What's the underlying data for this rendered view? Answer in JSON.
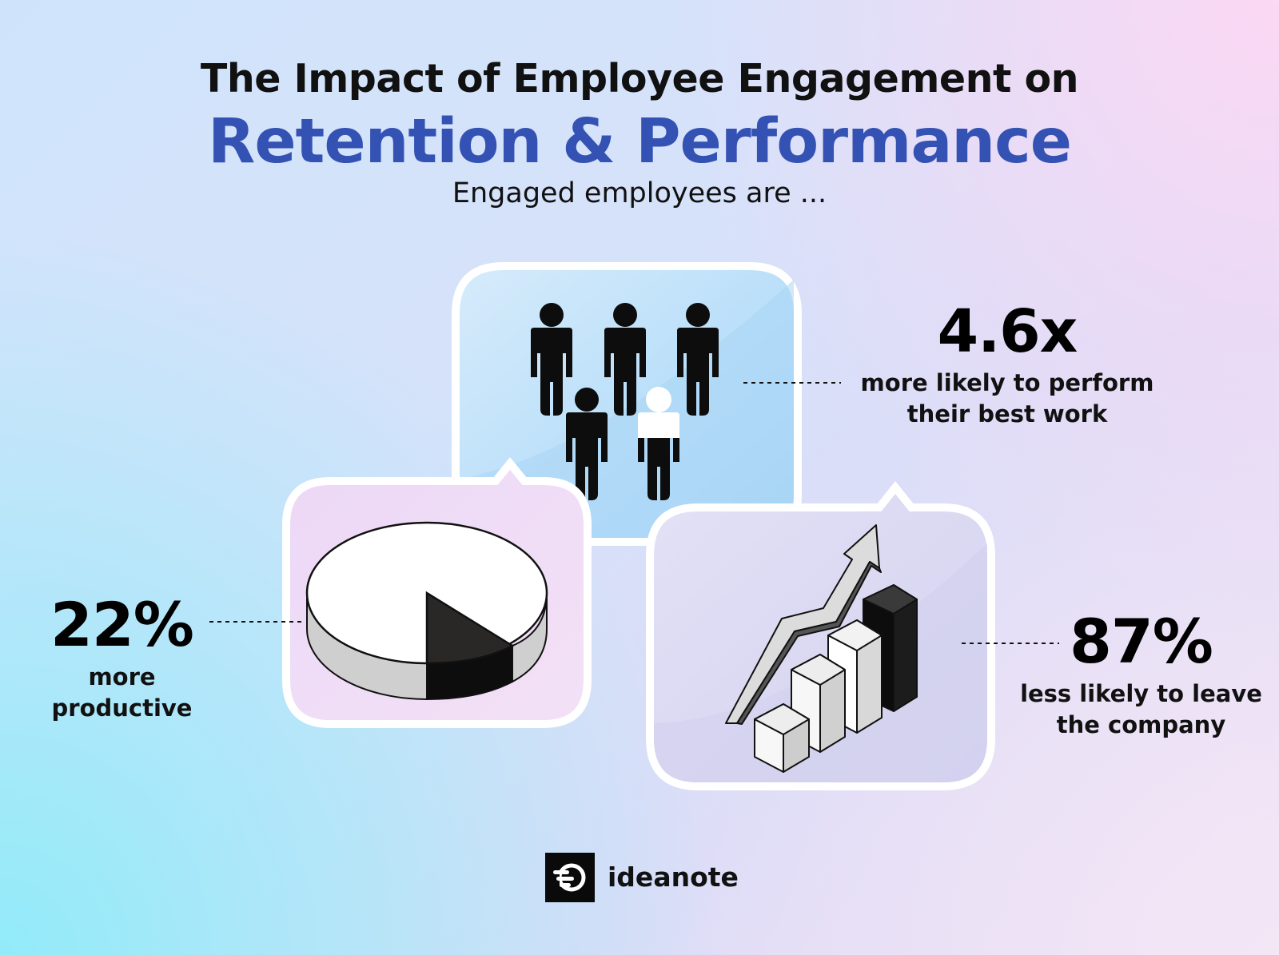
{
  "header": {
    "title_line1": "The Impact of Employee Engagement on",
    "title_line2": "Retention & Performance",
    "subtitle": "Engaged employees are ..."
  },
  "stats": [
    {
      "value": "4.6x",
      "label_line1": "more likely to perform",
      "label_line2": "their best work"
    },
    {
      "value": "22%",
      "label_line1": "more",
      "label_line2": "productive"
    },
    {
      "value": "87%",
      "label_line1": "less likely to leave",
      "label_line2": "the company"
    }
  ],
  "icons": {
    "card_top": "people-group-icon",
    "card_left": "pie-chart-icon",
    "card_right": "growth-bar-chart-icon",
    "logo": "ideanote-logo-icon"
  },
  "brand": {
    "name": "ideanote"
  },
  "colors": {
    "title_accent": "#3352b3",
    "card_top": "#aedaf8",
    "card_left": "#f0dcf5",
    "card_right": "#d9d7f2"
  }
}
